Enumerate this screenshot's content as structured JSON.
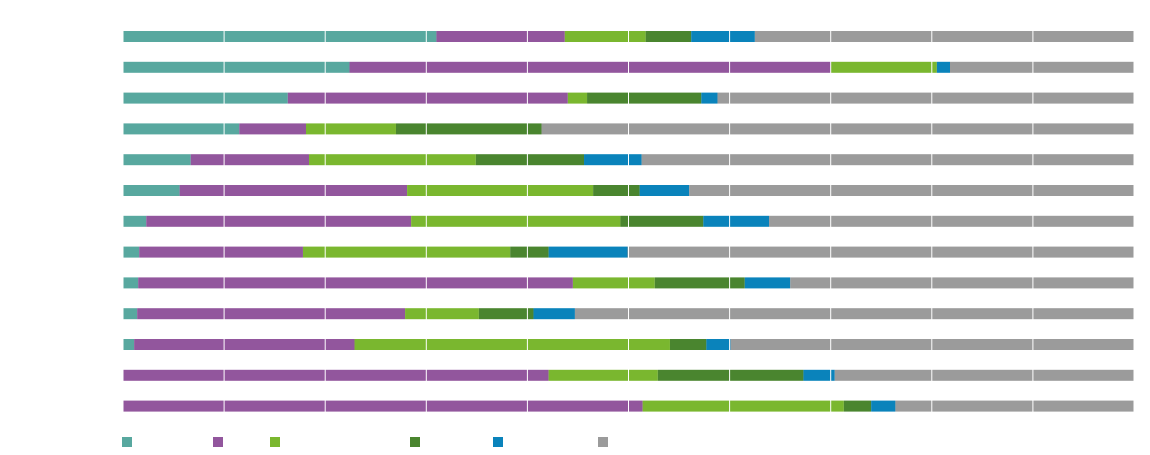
{
  "chart_data": {
    "type": "bar",
    "orientation": "horizontal",
    "stacked": "percent",
    "title": "",
    "xlabel": "",
    "ylabel": "",
    "xlim": [
      0,
      100
    ],
    "grid": true,
    "legend_position": "bottom-left",
    "categories": [
      "",
      "",
      "",
      "",
      "",
      "",
      "",
      "",
      "",
      "",
      "",
      "",
      ""
    ],
    "series": [
      {
        "color": "#58a89f",
        "values": [
          31.0,
          22.4,
          16.3,
          11.5,
          6.7,
          5.6,
          2.3,
          1.6,
          1.5,
          1.4,
          1.1,
          0.0,
          0.0
        ]
      },
      {
        "color": "#92569d",
        "values": [
          12.7,
          47.6,
          27.7,
          6.6,
          11.7,
          22.5,
          26.2,
          16.2,
          43.0,
          26.5,
          21.8,
          42.1,
          51.4
        ]
      },
      {
        "color": "#7ab72f",
        "values": [
          8.0,
          10.5,
          1.9,
          8.9,
          16.5,
          18.4,
          20.7,
          20.5,
          8.1,
          7.3,
          31.2,
          10.8,
          19.9
        ]
      },
      {
        "color": "#4a852f",
        "values": [
          4.5,
          0.0,
          11.3,
          14.4,
          10.7,
          4.6,
          8.2,
          3.8,
          8.9,
          5.4,
          3.6,
          14.4,
          2.7
        ]
      },
      {
        "color": "#0a83bb",
        "values": [
          6.3,
          1.3,
          1.6,
          0.0,
          5.7,
          4.9,
          6.5,
          7.8,
          4.5,
          4.1,
          2.4,
          3.1,
          2.4
        ]
      },
      {
        "color": "#9b9b9b",
        "values": [
          37.5,
          18.2,
          41.2,
          58.6,
          48.7,
          44.0,
          36.1,
          50.1,
          34.0,
          55.3,
          39.9,
          29.6,
          23.6
        ]
      }
    ]
  }
}
